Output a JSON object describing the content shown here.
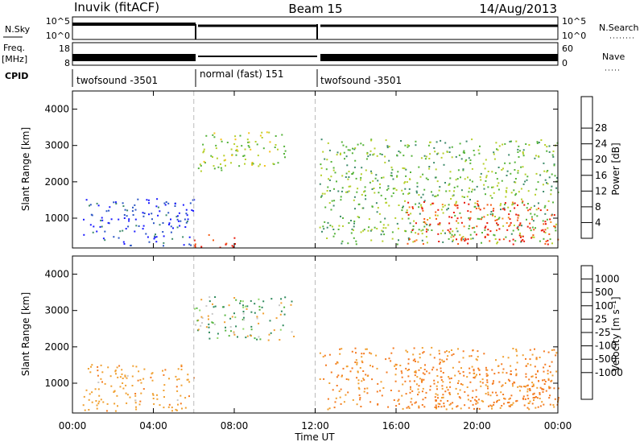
{
  "header": {
    "station": "Inuvik (fitACF)",
    "beam": "Beam 15",
    "date": "14/Aug/2013"
  },
  "strip": {
    "nsky_label": "N.Sky",
    "nsky_ticks": [
      "10^5",
      "10^0"
    ],
    "nsearch_label": "N.Search",
    "nsearch_ticks": [
      "10^5",
      "10^0"
    ],
    "freq_label_1": "Freq.",
    "freq_label_2": "[MHz]",
    "freq_ticks": [
      "18",
      "8"
    ],
    "nave_label": "Nave",
    "nave_ticks": [
      "60",
      "0"
    ],
    "cpid_label": "CPID",
    "cpid_segments": [
      {
        "label": "twofsound -3501",
        "start_h": 0,
        "end_h": 6.0
      },
      {
        "label": "normal (fast) 151",
        "start_h": 6.0,
        "end_h": 12.0
      },
      {
        "label": "twofsound -3501",
        "start_h": 12.0,
        "end_h": 24.0
      }
    ]
  },
  "chart_data": [
    {
      "type": "heatmap",
      "name": "power",
      "ylabel": "Slant Range [km]",
      "xlabel": "",
      "xlim": [
        0,
        24
      ],
      "ylim": [
        180,
        4500
      ],
      "yticks": [
        1000,
        2000,
        3000,
        4000
      ],
      "ytick_labels": [
        "1000",
        "2000",
        "3000",
        "4000"
      ],
      "colorbar": {
        "label": "Power [dB]",
        "ticks": [
          "4",
          "8",
          "12",
          "16",
          "20",
          "24",
          "28"
        ],
        "colors": [
          "#1a1aff",
          "#2b55c4",
          "#3c8a6a",
          "#55b33a",
          "#b6cf2a",
          "#f4c21a",
          "#f78a1a",
          "#f45a12",
          "#e81a0a"
        ]
      },
      "regions": [
        {
          "x": [
            0.5,
            6.0
          ],
          "y": [
            250,
            1550
          ],
          "level": 4
        },
        {
          "x": [
            6.0,
            8.0
          ],
          "y": [
            200,
            600
          ],
          "level": 28
        },
        {
          "x": [
            6.2,
            10.5
          ],
          "y": [
            2300,
            3400
          ],
          "level": 14
        },
        {
          "x": [
            12.2,
            24.0
          ],
          "y": [
            300,
            3200
          ],
          "level": 12
        },
        {
          "x": [
            16.5,
            24.0
          ],
          "y": [
            300,
            1500
          ],
          "level": 26
        }
      ]
    },
    {
      "type": "heatmap",
      "name": "velocity",
      "ylabel": "Slant Range [km]",
      "xlabel": "Time UT",
      "xlim": [
        0,
        24
      ],
      "ylim": [
        180,
        4500
      ],
      "xticks": [
        0,
        4,
        8,
        12,
        16,
        20,
        24
      ],
      "xtick_labels": [
        "00:00",
        "04:00",
        "08:00",
        "12:00",
        "16:00",
        "20:00",
        "00:00"
      ],
      "yticks": [
        1000,
        2000,
        3000,
        4000
      ],
      "ytick_labels": [
        "1000",
        "2000",
        "3000",
        "4000"
      ],
      "colorbar": {
        "label": "Velocity [m s⁻¹]",
        "ticks": [
          "1000",
          "500",
          "100",
          "25",
          "-25",
          "-100",
          "-500",
          "-1000"
        ],
        "colors": [
          "#1a2ad8",
          "#2a5ab0",
          "#2f8a5c",
          "#55b540",
          "#8fd66a",
          "#c8c8c8",
          "#f0a030",
          "#f47a20",
          "#f05014",
          "#e81a0a"
        ]
      },
      "regions": [
        {
          "x": [
            0.5,
            6.0
          ],
          "y": [
            250,
            1550
          ],
          "level": -200
        },
        {
          "x": [
            6.0,
            11.0
          ],
          "y": [
            2200,
            3400
          ],
          "level": 0
        },
        {
          "x": [
            12.2,
            24.0
          ],
          "y": [
            300,
            2000
          ],
          "level": -300
        },
        {
          "x": [
            16.5,
            24.0
          ],
          "y": [
            300,
            1500
          ],
          "level": -400
        }
      ]
    }
  ]
}
